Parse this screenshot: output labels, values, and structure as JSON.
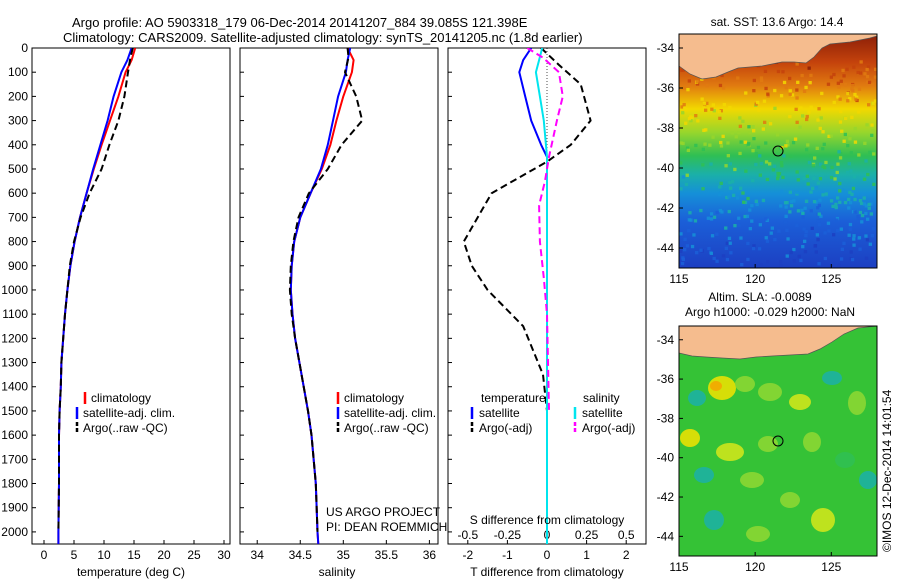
{
  "header": {
    "title": "Argo profile: AO 5903318_179 06-Dec-2014 20141207_884 39.085S 121.398E",
    "subtitle": "Climatology: CARS2009. Satellite-adjusted climatology: synTS_20141205.nc (1.8d earlier)"
  },
  "credits": {
    "project": "US ARGO PROJECT",
    "pi": "PI: DEAN ROEMMICH",
    "stamp": "©IMOS 12-Dec-2014 14:01:54"
  },
  "colors": {
    "climatology": "#ff0000",
    "satellite": "#0000ff",
    "argo": "#000000",
    "sat_salinity": "#00e5ee",
    "argo_salinity": "#ff00ff"
  },
  "chart_data": [
    {
      "type": "line",
      "id": "temperature",
      "xlabel": "temperature (deg C)",
      "ylabel": "",
      "xlim": [
        -2,
        31
      ],
      "ylim": [
        2050,
        0
      ],
      "xticks": [
        0,
        5,
        10,
        15,
        20,
        25,
        30
      ],
      "yticks": [
        0,
        100,
        200,
        300,
        400,
        500,
        600,
        700,
        800,
        900,
        1000,
        1100,
        1200,
        1300,
        1400,
        1500,
        1600,
        1700,
        1800,
        1900,
        2000
      ],
      "legend": [
        "climatology",
        "satellite-adj. clim.",
        "Argo(..raw -QC)"
      ],
      "series": [
        {
          "name": "climatology",
          "color": "#ff0000",
          "x": [
            15.2,
            14.6,
            13.6,
            12.4,
            11.0,
            9.6,
            8.3,
            7.1,
            6.0,
            5.1,
            4.4,
            3.9,
            3.5,
            3.2,
            2.9,
            2.8,
            2.6,
            2.5,
            2.5,
            2.4,
            2.4
          ],
          "y": [
            0,
            50,
            100,
            200,
            300,
            400,
            500,
            600,
            700,
            800,
            900,
            1000,
            1100,
            1200,
            1300,
            1400,
            1500,
            1600,
            1800,
            2000,
            2050
          ]
        },
        {
          "name": "satellite-adj. clim.",
          "color": "#0000ff",
          "x": [
            14.6,
            13.9,
            12.9,
            11.6,
            10.6,
            9.4,
            8.2,
            7.1,
            6.0,
            5.1,
            4.4,
            3.9,
            3.5,
            3.2,
            2.9,
            2.8,
            2.6,
            2.5,
            2.5,
            2.4,
            2.4
          ],
          "y": [
            0,
            50,
            100,
            200,
            300,
            400,
            500,
            600,
            700,
            800,
            900,
            1000,
            1100,
            1200,
            1300,
            1400,
            1500,
            1600,
            1800,
            2000,
            2050
          ]
        },
        {
          "name": "Argo(..raw -QC)",
          "color": "#000000",
          "dashed": true,
          "x": [
            14.8,
            14.4,
            14.0,
            13.4,
            12.4,
            10.9,
            9.6,
            7.6,
            6.1,
            5.0,
            4.3,
            3.9,
            3.5,
            3.2,
            2.9,
            2.8,
            2.6,
            2.5,
            2.5,
            2.4
          ],
          "y": [
            0,
            40,
            100,
            200,
            300,
            400,
            500,
            600,
            700,
            800,
            900,
            1000,
            1100,
            1200,
            1300,
            1400,
            1500,
            1600,
            1800,
            2000
          ]
        }
      ]
    },
    {
      "type": "line",
      "id": "salinity",
      "xlabel": "salinity",
      "ylabel": "",
      "xlim": [
        33.8,
        36.1
      ],
      "ylim": [
        2050,
        0
      ],
      "xticks": [
        34,
        34.5,
        35,
        35.5,
        36
      ],
      "legend": [
        "climatology",
        "satellite-adj. clim.",
        "Argo(..raw -QC)"
      ],
      "series": [
        {
          "name": "climatology",
          "color": "#ff0000",
          "x": [
            35.05,
            35.12,
            35.1,
            35.0,
            34.92,
            34.85,
            34.75,
            34.62,
            34.5,
            34.43,
            34.4,
            34.39,
            34.41,
            34.44,
            34.49,
            34.54,
            34.59,
            34.63,
            34.68,
            34.7,
            34.71
          ],
          "y": [
            0,
            50,
            100,
            200,
            300,
            400,
            500,
            600,
            700,
            800,
            900,
            1000,
            1100,
            1200,
            1300,
            1400,
            1500,
            1600,
            1800,
            2000,
            2050
          ]
        },
        {
          "name": "satellite-adj. clim.",
          "color": "#0000ff",
          "x": [
            35.08,
            35.05,
            35.03,
            34.94,
            34.88,
            34.82,
            34.74,
            34.62,
            34.5,
            34.43,
            34.4,
            34.39,
            34.41,
            34.44,
            34.49,
            34.54,
            34.59,
            34.63,
            34.68,
            34.7,
            34.71
          ],
          "y": [
            0,
            50,
            100,
            200,
            300,
            400,
            500,
            600,
            700,
            800,
            900,
            1000,
            1100,
            1200,
            1300,
            1400,
            1500,
            1600,
            1800,
            2000,
            2050
          ]
        },
        {
          "name": "Argo(..raw -QC)",
          "color": "#000000",
          "dashed": true,
          "x": [
            35.05,
            35.06,
            35.02,
            35.15,
            35.22,
            34.98,
            34.82,
            34.6,
            34.48,
            34.42,
            34.39,
            34.38,
            34.4,
            34.44,
            34.49,
            34.54,
            34.59,
            34.63,
            34.68,
            34.7
          ],
          "y": [
            0,
            40,
            100,
            200,
            300,
            400,
            500,
            600,
            700,
            800,
            900,
            1000,
            1100,
            1200,
            1300,
            1400,
            1500,
            1600,
            1800,
            2000
          ]
        }
      ]
    },
    {
      "type": "line",
      "id": "differences",
      "xlabel_top": "S difference from climatology",
      "xlabel": "T difference from climatology",
      "xlim": [
        -2.5,
        2.5
      ],
      "ylim": [
        2050,
        0
      ],
      "xticks_T": [
        -2,
        -1,
        0,
        1,
        2
      ],
      "xticks_S": [
        "-0.5",
        "-0.25",
        "0",
        "0.25",
        "0.5"
      ],
      "legend_temperature": {
        "title": "temperature",
        "items": [
          "satellite",
          "Argo(-adj)"
        ]
      },
      "legend_salinity": {
        "title": "salinity",
        "items": [
          "satellite",
          "Argo(-adj)"
        ]
      },
      "series": [
        {
          "name": "temperature satellite",
          "color": "#0000ff",
          "x": [
            -0.4,
            -0.6,
            -0.7,
            -0.55,
            -0.4,
            -0.15,
            0,
            0,
            0,
            0,
            0
          ],
          "y": [
            0,
            50,
            100,
            200,
            300,
            400,
            450,
            500,
            700,
            1000,
            2050
          ]
        },
        {
          "name": "temperature Argo(-adj)",
          "color": "#000000",
          "dashed": true,
          "x": [
            -0.15,
            0.3,
            0.85,
            1.1,
            0.6,
            0,
            -1.4,
            -2.1,
            -1.9,
            -1.5,
            -0.6,
            -0.1,
            0
          ],
          "y": [
            0,
            70,
            150,
            300,
            400,
            470,
            600,
            800,
            900,
            1000,
            1150,
            1350,
            1500
          ]
        },
        {
          "name": "salinity satellite",
          "color": "#00e5ee",
          "x": [
            -0.12,
            -0.2,
            -0.28,
            -0.18,
            -0.08,
            0,
            0,
            0,
            0
          ],
          "y": [
            0,
            50,
            100,
            200,
            300,
            450,
            700,
            1000,
            2050
          ]
        },
        {
          "name": "salinity Argo(-adj)",
          "color": "#ff00ff",
          "dashed": true,
          "x": [
            -0.5,
            -0.1,
            0.3,
            0.4,
            0.25,
            0.05,
            -0.05,
            -0.2,
            -0.18,
            -0.08,
            0,
            0.05
          ],
          "y": [
            0,
            40,
            100,
            200,
            300,
            450,
            550,
            650,
            800,
            950,
            1100,
            1500
          ]
        }
      ]
    },
    {
      "type": "heatmap",
      "id": "sst-map",
      "title": "sat. SST: 13.6  Argo: 14.4",
      "xticks": [
        115,
        120,
        125
      ],
      "yticks": [
        -34,
        -36,
        -38,
        -40,
        -42,
        -44
      ],
      "xlim": [
        115,
        128
      ],
      "ylim": [
        -45,
        -33.3
      ],
      "marker": {
        "lon": 121.398,
        "lat": -39.085
      }
    },
    {
      "type": "heatmap",
      "id": "sla-map",
      "title": "Altim. SLA: -0.0089",
      "subtitle": "Argo h1000: -0.029 h2000: NaN",
      "xticks": [
        115,
        120,
        125
      ],
      "yticks": [
        -34,
        -36,
        -38,
        -40,
        -42,
        -44
      ],
      "xlim": [
        115,
        128
      ],
      "ylim": [
        -45,
        -33.3
      ],
      "marker": {
        "lon": 121.398,
        "lat": -39.085
      }
    }
  ]
}
